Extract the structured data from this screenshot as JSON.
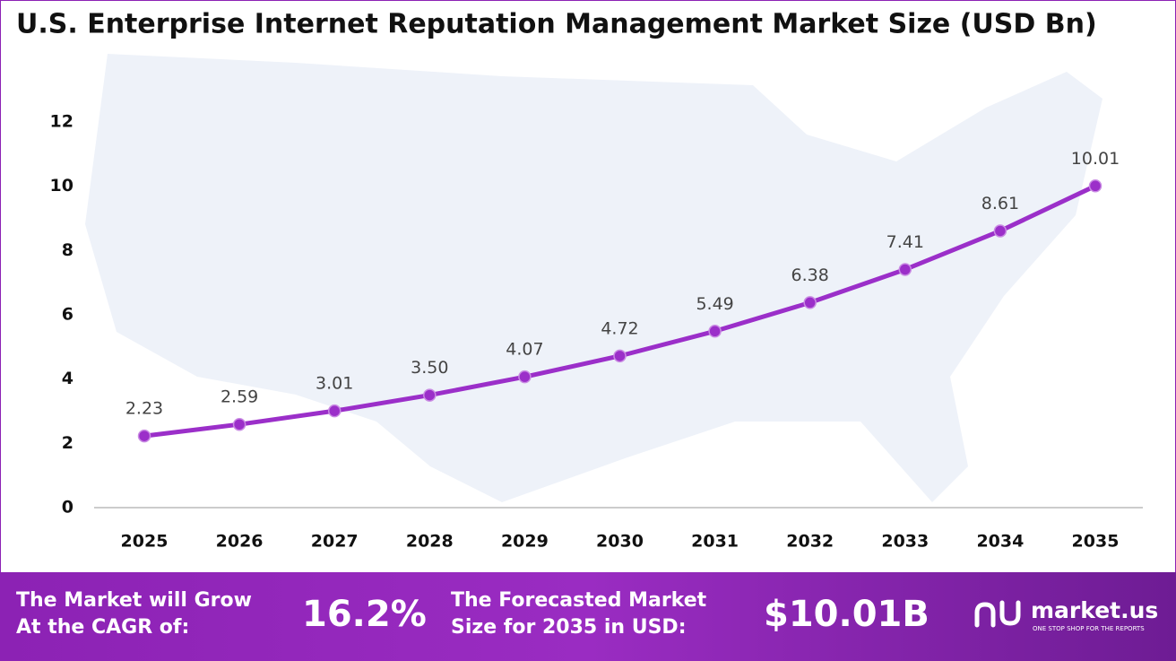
{
  "chart_data": {
    "type": "line",
    "title": "U.S. Enterprise Internet Reputation Management Market Size (USD Bn)",
    "categories": [
      "2025",
      "2026",
      "2027",
      "2028",
      "2029",
      "2030",
      "2031",
      "2032",
      "2033",
      "2034",
      "2035"
    ],
    "values": [
      2.23,
      2.59,
      3.01,
      3.5,
      4.07,
      4.72,
      5.49,
      6.38,
      7.41,
      8.61,
      10.01
    ],
    "value_labels": [
      "2.23",
      "2.59",
      "3.01",
      "3.50",
      "4.07",
      "4.72",
      "5.49",
      "6.38",
      "7.41",
      "8.61",
      "10.01"
    ],
    "color": "#9b2fc9",
    "ylim": [
      0,
      12
    ],
    "yticks": [
      0,
      2,
      4,
      6,
      8,
      10,
      12
    ],
    "grid": false
  },
  "footer": {
    "cagr_text": [
      "The Market will Grow",
      "At the CAGR of:"
    ],
    "cagr_value": "16.2%",
    "forecast_text": [
      "The Forecasted Market",
      "Size for 2035 in USD:"
    ],
    "forecast_value": "$10.01B",
    "brand": "market.us",
    "tagline": "ONE STOP SHOP FOR THE REPORTS"
  }
}
